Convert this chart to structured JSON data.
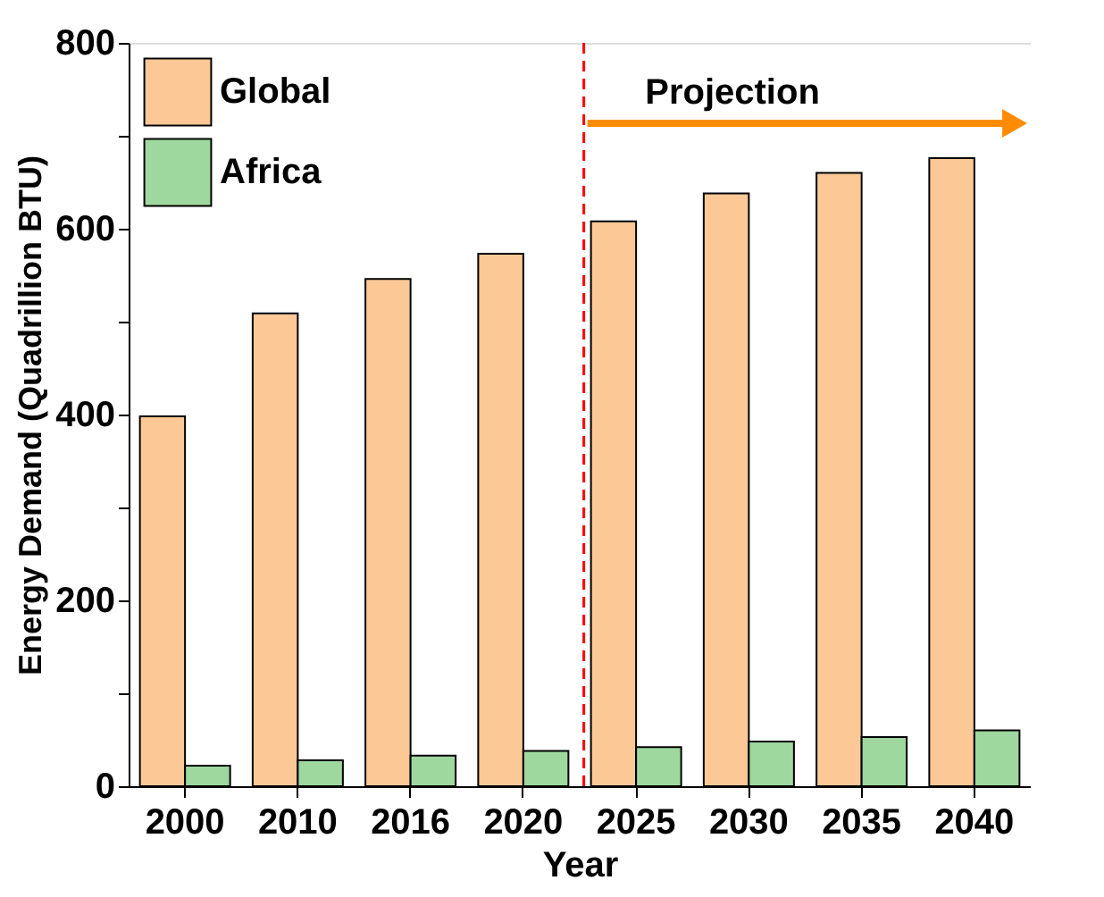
{
  "chart_data": {
    "type": "bar",
    "xlabel": "Year",
    "ylabel": "Energy Demand (Quadrillion BTU)",
    "categories": [
      "2000",
      "2010",
      "2016",
      "2020",
      "2025",
      "2030",
      "2035",
      "2040"
    ],
    "series": [
      {
        "name": "Global",
        "color": "#fbc896",
        "values": [
          398,
          509,
          546,
          573,
          608,
          638,
          660,
          676
        ]
      },
      {
        "name": "Africa",
        "color": "#9ed89e",
        "values": [
          22,
          28,
          33,
          38,
          42,
          48,
          53,
          60
        ]
      }
    ],
    "ylim": [
      0,
      800
    ],
    "yticks": [
      0,
      {
        "value": 100,
        "label": null
      },
      200,
      {
        "value": 300,
        "label": null
      },
      400,
      {
        "value": 500,
        "label": null
      },
      600,
      {
        "value": 700,
        "label": null
      },
      800
    ],
    "ref_lines": [
      {
        "axis": "x",
        "value": "2025",
        "color": "#ff0000",
        "line_style": "dashed"
      }
    ],
    "annotations": [
      "Projection"
    ],
    "legend": "top left",
    "grid": false
  }
}
